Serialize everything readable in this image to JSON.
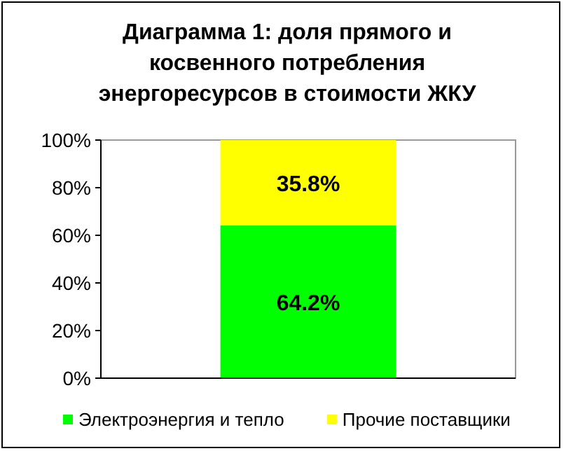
{
  "chart_data": {
    "type": "bar",
    "title": "Диаграмма 1: доля прямого и косвенного потребления энергоресурсов в стоимости ЖКУ",
    "categories": [
      null
    ],
    "stacked": true,
    "series": [
      {
        "name": "Электроэнергия и тепло",
        "color": "#00ff00",
        "values": [
          64.2
        ],
        "value_labels": [
          "64.2%"
        ]
      },
      {
        "name": "Прочие поставщики",
        "color": "#ffff00",
        "values": [
          35.8
        ],
        "value_labels": [
          "35.8%"
        ]
      }
    ],
    "ylim": [
      0,
      100
    ],
    "yticks": [
      {
        "value": 0,
        "label": "0%"
      },
      {
        "value": 20,
        "label": "20%"
      },
      {
        "value": 40,
        "label": "40%"
      },
      {
        "value": 60,
        "label": "60%"
      },
      {
        "value": 80,
        "label": "80%"
      },
      {
        "value": 100,
        "label": "100%"
      }
    ],
    "grid": false,
    "legend": "bottom"
  }
}
